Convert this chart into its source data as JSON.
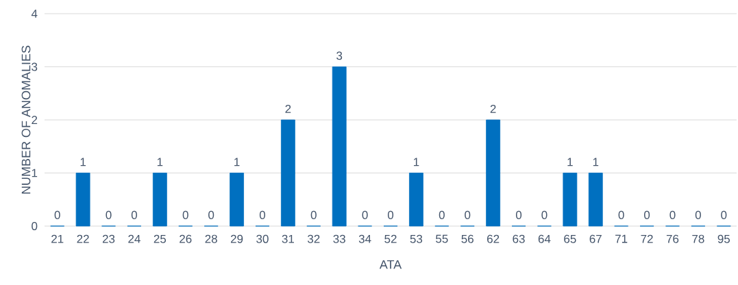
{
  "chart_data": {
    "type": "bar",
    "xlabel": "ATA",
    "ylabel": "NUMBER OF ANOMALIES",
    "categories": [
      "21",
      "22",
      "23",
      "24",
      "25",
      "26",
      "28",
      "29",
      "30",
      "31",
      "32",
      "33",
      "34",
      "52",
      "53",
      "55",
      "56",
      "62",
      "63",
      "64",
      "65",
      "67",
      "71",
      "72",
      "76",
      "78",
      "95"
    ],
    "values": [
      0,
      1,
      0,
      0,
      1,
      0,
      0,
      1,
      0,
      2,
      0,
      3,
      0,
      0,
      1,
      0,
      0,
      2,
      0,
      0,
      1,
      1,
      0,
      0,
      0,
      0,
      0
    ],
    "color": "#0070c0",
    "ylim": [
      0,
      4
    ],
    "yticks": [
      0,
      1,
      2,
      3,
      4
    ],
    "grid": "y",
    "data_labels": true
  }
}
